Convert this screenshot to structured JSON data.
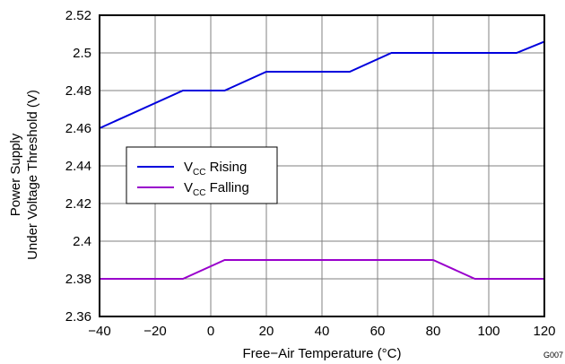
{
  "chart_data": {
    "type": "line",
    "title": "",
    "xlabel": "Free−Air Temperature (°C)",
    "ylabel_line1": "Power Supply",
    "ylabel_line2": "Under Voltage Threshold (V)",
    "xlim": [
      -40,
      120
    ],
    "ylim": [
      2.36,
      2.52
    ],
    "xticks": [
      -40,
      -20,
      0,
      20,
      40,
      60,
      80,
      100,
      120
    ],
    "xtick_labels": [
      "−40",
      "−20",
      "0",
      "20",
      "40",
      "60",
      "80",
      "100",
      "120"
    ],
    "yticks": [
      2.36,
      2.38,
      2.4,
      2.42,
      2.44,
      2.46,
      2.48,
      2.5,
      2.52
    ],
    "ytick_labels": [
      "2.36",
      "2.38",
      "2.4",
      "2.42",
      "2.44",
      "2.46",
      "2.48",
      "2.5",
      "2.52"
    ],
    "grid": true,
    "legend_position": "middle-left",
    "series": [
      {
        "name": "VCC Rising",
        "legend_main": "V",
        "legend_sub": "CC",
        "legend_suffix": " Rising",
        "color": "#0000dd",
        "x": [
          -40,
          -10,
          5,
          20,
          50,
          65,
          110,
          120
        ],
        "y": [
          2.46,
          2.48,
          2.48,
          2.49,
          2.49,
          2.5,
          2.5,
          2.506
        ]
      },
      {
        "name": "VCC Falling",
        "legend_main": "V",
        "legend_sub": "CC",
        "legend_suffix": " Falling",
        "color": "#9900cc",
        "x": [
          -40,
          -10,
          5,
          80,
          95,
          120
        ],
        "y": [
          2.38,
          2.38,
          2.39,
          2.39,
          2.38,
          2.38
        ]
      }
    ],
    "figure_code": "G007"
  }
}
